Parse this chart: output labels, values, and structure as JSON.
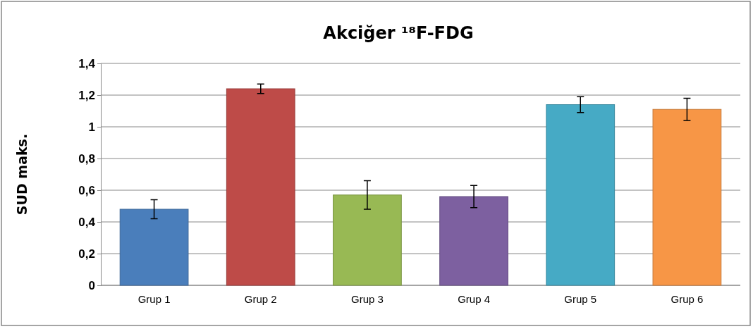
{
  "chart_data": {
    "type": "bar",
    "title": "Akciğer ¹⁸F-FDG",
    "ylabel": "SUD maks.",
    "categories": [
      "Grup 1",
      "Grup 2",
      "Grup 3",
      "Grup 4",
      "Grup 5",
      "Grup 6"
    ],
    "values": [
      0.48,
      1.24,
      0.57,
      0.56,
      1.14,
      1.11
    ],
    "errors": [
      0.06,
      0.03,
      0.09,
      0.07,
      0.05,
      0.07
    ],
    "colors": [
      "#4a7ebb",
      "#be4b48",
      "#98b954",
      "#7d60a0",
      "#46aac5",
      "#f79646"
    ],
    "ylim": [
      0,
      1.4
    ],
    "yticks": [
      0,
      {
        "value": 0.2,
        "label": "0,2"
      },
      {
        "value": 0.4,
        "label": "0,4"
      },
      {
        "value": 0.6,
        "label": "0,6"
      },
      {
        "value": 0.8,
        "label": "0,8"
      },
      1,
      {
        "value": 1.2,
        "label": "1,2"
      },
      {
        "value": 1.4,
        "label": "1,4"
      }
    ],
    "grid": "y"
  }
}
